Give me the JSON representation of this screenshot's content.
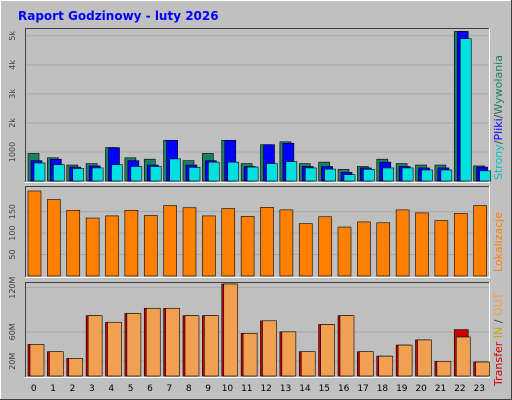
{
  "colors": {
    "window_bg": "#c0c0c0",
    "plot_bg": "#bfbfbf",
    "grid": "#a8a8a8",
    "title": "#0000ff",
    "pages": "#1a7f64",
    "files": "#0000ff",
    "hits": "#00e0e0",
    "lokalizacje": "#ff7f00",
    "lok_label": "#ff7f00",
    "transfer": "#ff0000",
    "in": "#d2a000",
    "out": "#ff9933",
    "transfer_bar_back": "#cc0000",
    "transfer_bar_front": "#f0a050"
  },
  "chart_data": [
    {
      "type": "bar",
      "title": "Raport Godzinowy -  luty 2026",
      "categories": [
        "0",
        "1",
        "2",
        "3",
        "4",
        "5",
        "6",
        "7",
        "8",
        "9",
        "10",
        "11",
        "12",
        "13",
        "14",
        "15",
        "16",
        "17",
        "18",
        "19",
        "20",
        "21",
        "22",
        "23"
      ],
      "ylabel_parts": [
        "Strony",
        "/",
        "Pliki",
        "/",
        "Wywołania"
      ],
      "yticks": [
        "1000",
        "2k",
        "3k",
        "4k",
        "5k"
      ],
      "ytick_values": [
        1000,
        2000,
        3000,
        4000,
        5000
      ],
      "ylim": [
        0,
        5200
      ],
      "series": [
        {
          "name": "Strony",
          "values": [
            950,
            800,
            550,
            600,
            1150,
            800,
            750,
            1400,
            700,
            950,
            1400,
            600,
            1250,
            1350,
            600,
            650,
            400,
            500,
            750,
            600,
            550,
            550,
            5150,
            520
          ]
        },
        {
          "name": "Pliki",
          "values": [
            700,
            750,
            480,
            520,
            1150,
            700,
            550,
            1400,
            550,
            700,
            1400,
            500,
            1250,
            1300,
            500,
            500,
            300,
            450,
            650,
            500,
            450,
            450,
            5150,
            480
          ]
        },
        {
          "name": "Wywołania",
          "values": [
            620,
            560,
            430,
            450,
            560,
            500,
            500,
            760,
            470,
            650,
            650,
            480,
            600,
            670,
            450,
            410,
            220,
            400,
            450,
            450,
            380,
            380,
            4900,
            350
          ]
        }
      ]
    },
    {
      "type": "bar",
      "categories": [
        "0",
        "1",
        "2",
        "3",
        "4",
        "5",
        "6",
        "7",
        "8",
        "9",
        "10",
        "11",
        "12",
        "13",
        "14",
        "15",
        "16",
        "17",
        "18",
        "19",
        "20",
        "21",
        "22",
        "23"
      ],
      "ylabel": "Lokalizacje",
      "yticks": [
        "50",
        "100",
        "150"
      ],
      "ytick_values": [
        50,
        100,
        150
      ],
      "ylim": [
        0,
        205
      ],
      "series": [
        {
          "name": "Lokalizacje",
          "values": [
            198,
            178,
            153,
            135,
            140,
            153,
            141,
            164,
            159,
            140,
            157,
            139,
            160,
            154,
            122,
            138,
            114,
            126,
            124,
            154,
            147,
            129,
            146,
            164
          ]
        }
      ]
    },
    {
      "type": "bar",
      "categories": [
        "0",
        "1",
        "2",
        "3",
        "4",
        "5",
        "6",
        "7",
        "8",
        "9",
        "10",
        "11",
        "12",
        "13",
        "14",
        "15",
        "16",
        "17",
        "18",
        "19",
        "20",
        "21",
        "22",
        "23"
      ],
      "ylabel_parts": [
        "Transfer",
        "IN",
        "/",
        "OUT"
      ],
      "yticks": [
        "20M",
        "60M",
        "120M"
      ],
      "ytick_values": [
        20,
        60,
        120
      ],
      "ylim": [
        0,
        125
      ],
      "series": [
        {
          "name": "Transfer",
          "values": [
            43,
            33,
            24,
            82,
            73,
            85,
            92,
            92,
            82,
            82,
            125,
            58,
            75,
            60,
            33,
            70,
            82,
            33,
            27,
            42,
            49,
            20,
            63,
            19
          ]
        },
        {
          "name": "IN",
          "values": [
            0,
            0,
            0,
            0,
            0,
            0,
            0,
            0,
            0,
            0,
            0,
            0,
            0,
            0,
            0,
            0,
            0,
            0,
            0,
            0,
            0,
            0,
            0,
            0
          ]
        },
        {
          "name": "OUT",
          "values": [
            43,
            33,
            24,
            82,
            73,
            85,
            92,
            92,
            82,
            82,
            125,
            58,
            75,
            60,
            33,
            70,
            82,
            33,
            27,
            42,
            49,
            20,
            53,
            19
          ]
        }
      ]
    }
  ]
}
